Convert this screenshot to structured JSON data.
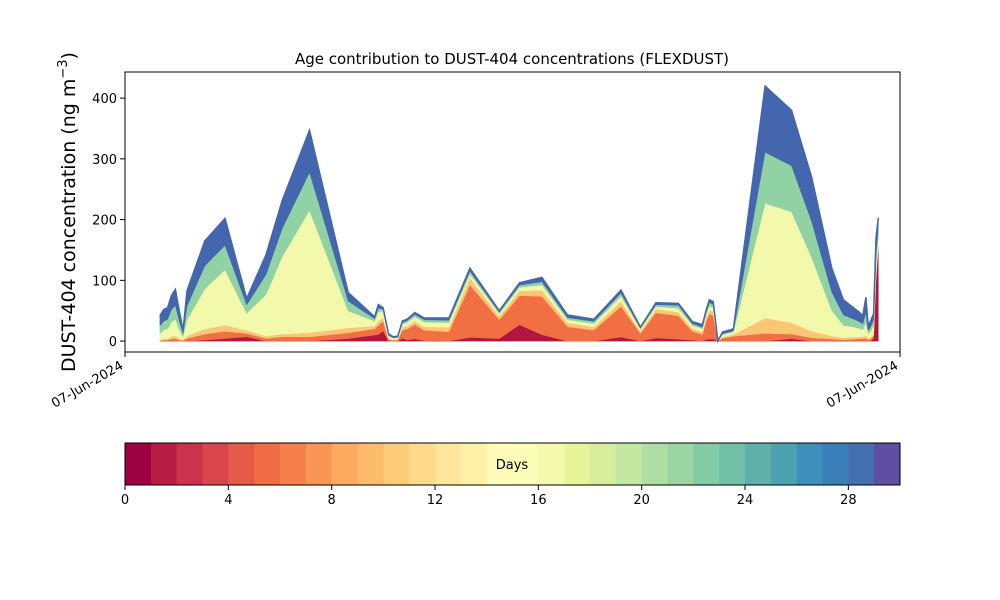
{
  "chart_data": {
    "type": "area",
    "title": "Age contribution to DUST-404 concentrations (FLEXDUST)",
    "ylabel": "DUST-404 concentration (ng m",
    "ylabel_sup": "−3",
    "ylabel_close": ")",
    "ylim": [
      -18,
      443
    ],
    "yticks": [
      0,
      100,
      200,
      300,
      400
    ],
    "xtick_labels": [
      "07-Jun-2024",
      "07-Jun-2024"
    ],
    "x_range": [
      0,
      100
    ],
    "grid": false,
    "stacking": "cumulative age bins, 0 to 30 days",
    "x": [
      4.5,
      5,
      5.5,
      6,
      6.5,
      7,
      7.5,
      8,
      10.3,
      12.9,
      15.7,
      18.2,
      20.3,
      23.8,
      28.8,
      32.2,
      32.7,
      33.3,
      34,
      34.6,
      35.2,
      35.8,
      36.4,
      37.4,
      38.6,
      41.8,
      44.5,
      48.3,
      50.9,
      53.8,
      57.1,
      60.5,
      64,
      66.5,
      68.5,
      71.4,
      73.2,
      74.5,
      75,
      75.4,
      75.9,
      76.5,
      77.1,
      78.5,
      82.6,
      86,
      88.6,
      91.2,
      92.7,
      94,
      94.7,
      95.2,
      95.6,
      95.9,
      96.2,
      96.6,
      96.9,
      97.2
    ],
    "totals": [
      42,
      52,
      55,
      75,
      85,
      50,
      18,
      83,
      165,
      202,
      70,
      142,
      232,
      347,
      80,
      40,
      60,
      55,
      12,
      7,
      8,
      33,
      36,
      47,
      38,
      38,
      120,
      50,
      96,
      105,
      43,
      36,
      84,
      23,
      63,
      62,
      32,
      27,
      52,
      68,
      65,
      0,
      15,
      20,
      420,
      380,
      270,
      120,
      68,
      55,
      48,
      42,
      72,
      25,
      33,
      45,
      170,
      203
    ],
    "segments": [
      {
        "name": "red_0_4d",
        "fractions": [
          0,
          0,
          0,
          0,
          0,
          0,
          0,
          0,
          0.01,
          0.02,
          0.1,
          0,
          0,
          0,
          0.05,
          0.25,
          0.18,
          0.3,
          0,
          0,
          0,
          0.15,
          0.05,
          0.08,
          0.02,
          0,
          0.05,
          0.08,
          0.28,
          0.1,
          0,
          0,
          0.08,
          0,
          0.08,
          0.05,
          0.05,
          0,
          0.05,
          0.05,
          0.05,
          0,
          0,
          0,
          0,
          0.01,
          0,
          0,
          0,
          0,
          0,
          0,
          0,
          0,
          0,
          0.1,
          0.6,
          0.75
        ]
      },
      {
        "name": "orange_4_8d",
        "fractions": [
          0.02,
          0.03,
          0.03,
          0.05,
          0.05,
          0.03,
          0.05,
          0.05,
          0.06,
          0.06,
          0.08,
          0.03,
          0.03,
          0.02,
          0.12,
          0.25,
          0.25,
          0.3,
          0.2,
          0.2,
          0.2,
          0.4,
          0.5,
          0.5,
          0.45,
          0.4,
          0.72,
          0.62,
          0.5,
          0.6,
          0.55,
          0.5,
          0.6,
          0.55,
          0.66,
          0.62,
          0.45,
          0.4,
          0.6,
          0.6,
          0.6,
          0,
          0.3,
          0.4,
          0.03,
          0.02,
          0.02,
          0.03,
          0.03,
          0.06,
          0.08,
          0.1,
          0.06,
          0.1,
          0.1,
          0.1,
          0.02,
          0.02
        ]
      },
      {
        "name": "peach_8_12d",
        "fractions": [
          0.03,
          0.04,
          0.04,
          0.05,
          0.05,
          0.05,
          0.07,
          0.05,
          0.05,
          0.05,
          0.07,
          0.03,
          0.02,
          0.02,
          0.1,
          0.12,
          0.12,
          0.1,
          0.2,
          0.2,
          0.2,
          0.15,
          0.15,
          0.12,
          0.15,
          0.2,
          0.1,
          0.12,
          0.08,
          0.1,
          0.15,
          0.15,
          0.1,
          0.15,
          0.1,
          0.1,
          0.15,
          0.15,
          0.1,
          0.1,
          0.1,
          0,
          0.15,
          0.15,
          0.06,
          0.05,
          0.04,
          0.04,
          0.05,
          0.06,
          0.06,
          0.07,
          0.06,
          0.08,
          0.08,
          0.06,
          0.03,
          0.03
        ]
      },
      {
        "name": "yellow_12_20d",
        "fractions": [
          0.25,
          0.28,
          0.3,
          0.32,
          0.32,
          0.3,
          0.28,
          0.32,
          0.4,
          0.45,
          0.4,
          0.48,
          0.55,
          0.58,
          0.35,
          0.2,
          0.25,
          0.2,
          0.3,
          0.3,
          0.3,
          0.15,
          0.15,
          0.15,
          0.2,
          0.2,
          0.05,
          0.08,
          0.06,
          0.08,
          0.12,
          0.15,
          0.1,
          0.15,
          0.06,
          0.1,
          0.15,
          0.2,
          0.1,
          0.1,
          0.1,
          0,
          0.25,
          0.2,
          0.45,
          0.48,
          0.45,
          0.35,
          0.3,
          0.3,
          0.3,
          0.28,
          0.3,
          0.3,
          0.3,
          0.3,
          0.1,
          0.06
        ]
      },
      {
        "name": "green_20_24d",
        "fractions": [
          0.3,
          0.28,
          0.28,
          0.27,
          0.27,
          0.28,
          0.28,
          0.27,
          0.23,
          0.2,
          0.2,
          0.23,
          0.2,
          0.18,
          0.2,
          0.1,
          0.1,
          0.05,
          0.1,
          0.1,
          0.1,
          0.08,
          0.08,
          0.08,
          0.1,
          0.1,
          0.04,
          0.05,
          0.04,
          0.05,
          0.08,
          0.1,
          0.06,
          0.08,
          0.05,
          0.08,
          0.1,
          0.1,
          0.08,
          0.08,
          0.08,
          0,
          0.1,
          0.1,
          0.2,
          0.2,
          0.22,
          0.25,
          0.25,
          0.24,
          0.23,
          0.22,
          0.24,
          0.22,
          0.22,
          0.22,
          0.1,
          0.06
        ]
      },
      {
        "name": "blue_24_30d",
        "fractions": [
          0.4,
          0.37,
          0.35,
          0.31,
          0.31,
          0.34,
          0.32,
          0.31,
          0.25,
          0.22,
          0.15,
          0.23,
          0.2,
          0.2,
          0.18,
          0.08,
          0.1,
          0.05,
          0.2,
          0.2,
          0.2,
          0.07,
          0.07,
          0.07,
          0.08,
          0.1,
          0.04,
          0.05,
          0.04,
          0.07,
          0.1,
          0.1,
          0.06,
          0.07,
          0.05,
          0.05,
          0.1,
          0.15,
          0.07,
          0.07,
          0.07,
          0,
          0.2,
          0.15,
          0.26,
          0.24,
          0.27,
          0.33,
          0.37,
          0.34,
          0.33,
          0.33,
          0.34,
          0.3,
          0.3,
          0.22,
          0.15,
          0.08
        ]
      }
    ],
    "segment_colors": [
      "#b2163f",
      "#f26f44",
      "#fdc676",
      "#f3f9ab",
      "#90d2a3",
      "#4366ae"
    ],
    "colorbar": {
      "label": "Days",
      "min": 0,
      "max": 30,
      "ticks": [
        0,
        4,
        8,
        12,
        16,
        20,
        24,
        28
      ],
      "colors": [
        "#9e0142",
        "#b71c45",
        "#cb334c",
        "#da464d",
        "#e65a48",
        "#f06c45",
        "#f6804c",
        "#f99555",
        "#fcaa5f",
        "#fdbc6c",
        "#fdcc7a",
        "#fed98b",
        "#fee69a",
        "#fff1a8",
        "#fffbb8",
        "#fbfdb9",
        "#f4faad",
        "#e6f598",
        "#d6ee9b",
        "#c4e7a2",
        "#b0dfa3",
        "#9bd5a4",
        "#84cba5",
        "#6fc0a6",
        "#5fb0a9",
        "#4ea2b0",
        "#3f8fbb",
        "#3a7fb8",
        "#4570b0",
        "#5e4fa2"
      ]
    }
  }
}
